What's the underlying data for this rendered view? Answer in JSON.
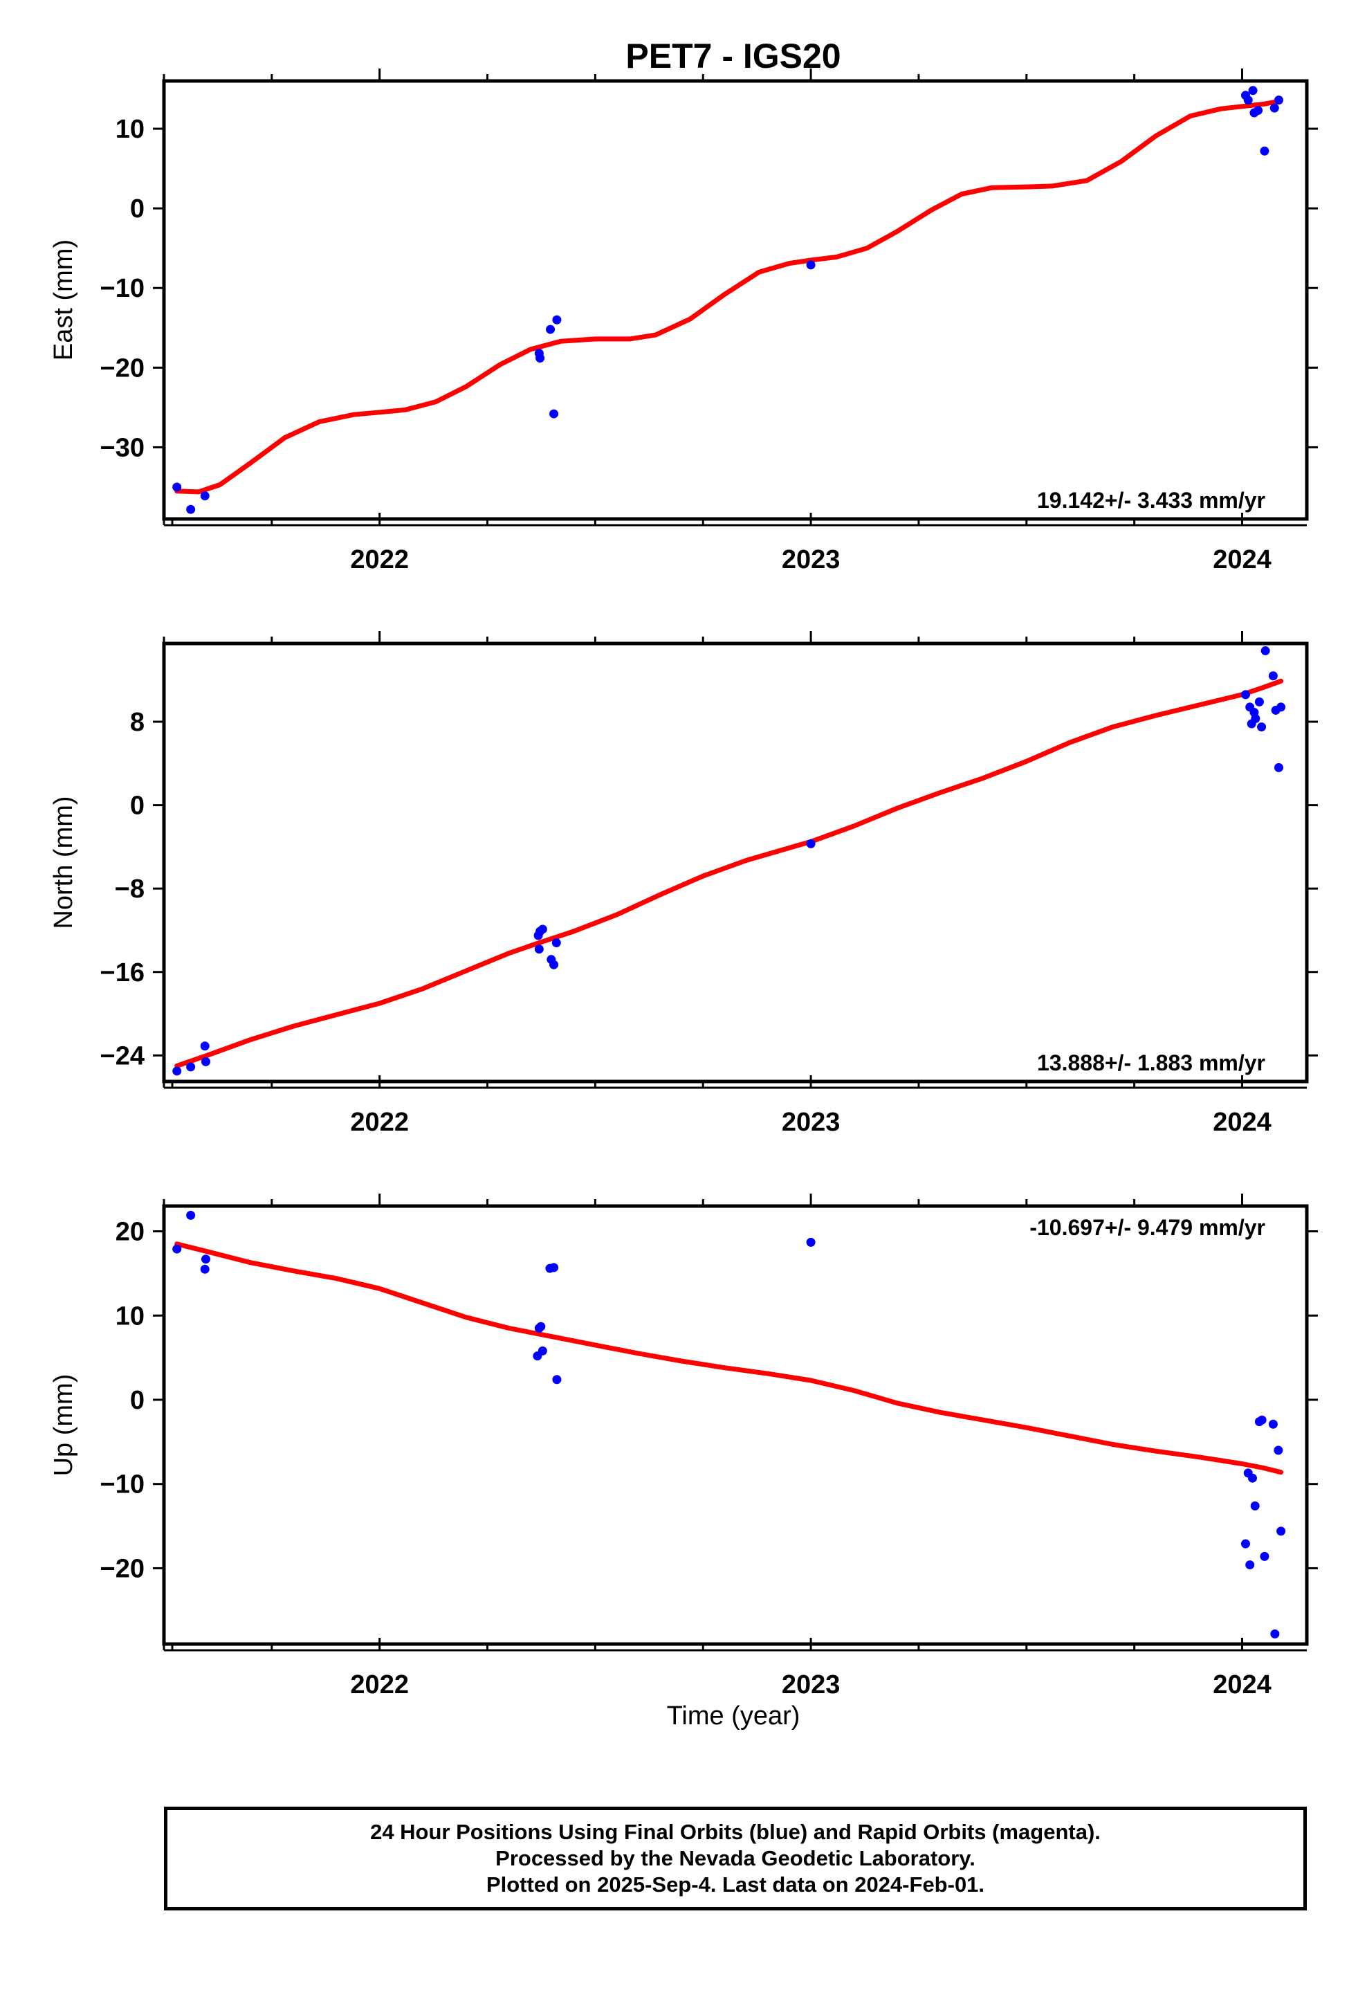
{
  "title": "PET7 - IGS20",
  "xlabel": "Time (year)",
  "colors": {
    "final_orbits": "#0000ff",
    "fit": "#ff0000"
  },
  "footer": {
    "line1": "24 Hour Positions Using Final Orbits (blue) and Rapid Orbits (magenta).",
    "line2": "Processed by the Nevada Geodetic Laboratory.",
    "line3": "Plotted on 2025-Sep-4. Last data on 2024-Feb-01."
  },
  "chart_data": [
    {
      "type": "scatter",
      "ylabel": "East (mm)",
      "rate_label": "19.142+/- 3.433 mm/yr",
      "rate_position": "bottom-right",
      "xlim": [
        2021.5,
        2024.15
      ],
      "ylim": [
        -39,
        16
      ],
      "x_ticks": [
        2022,
        2023,
        2024
      ],
      "y_ticks": [
        -30,
        -20,
        -10,
        0,
        10
      ],
      "grid": false,
      "series": [
        {
          "points": [
            [
              2021.53,
              -35.0
            ],
            [
              2021.562,
              -37.8
            ],
            [
              2021.595,
              -36.1
            ],
            [
              2022.37,
              -18.2
            ],
            [
              2022.372,
              -18.8
            ],
            [
              2022.396,
              -15.2
            ],
            [
              2022.404,
              -25.8
            ],
            [
              2022.411,
              -14.0
            ],
            [
              2023.0,
              -7.1
            ],
            [
              2024.008,
              14.2
            ],
            [
              2024.014,
              13.6
            ],
            [
              2024.025,
              14.8
            ],
            [
              2024.028,
              12.0
            ],
            [
              2024.037,
              12.3
            ],
            [
              2024.052,
              7.2
            ],
            [
              2024.075,
              12.6
            ],
            [
              2024.085,
              13.6
            ]
          ],
          "fit": [
            [
              2021.53,
              -35.5
            ],
            [
              2021.58,
              -35.6
            ],
            [
              2021.63,
              -34.7
            ],
            [
              2021.7,
              -32.0
            ],
            [
              2021.78,
              -28.8
            ],
            [
              2021.86,
              -26.8
            ],
            [
              2021.94,
              -25.9
            ],
            [
              2022.0,
              -25.6
            ],
            [
              2022.06,
              -25.3
            ],
            [
              2022.13,
              -24.3
            ],
            [
              2022.2,
              -22.4
            ],
            [
              2022.28,
              -19.6
            ],
            [
              2022.35,
              -17.7
            ],
            [
              2022.42,
              -16.7
            ],
            [
              2022.5,
              -16.4
            ],
            [
              2022.58,
              -16.4
            ],
            [
              2022.64,
              -15.9
            ],
            [
              2022.72,
              -13.9
            ],
            [
              2022.8,
              -10.8
            ],
            [
              2022.88,
              -8.0
            ],
            [
              2022.95,
              -6.9
            ],
            [
              2023.0,
              -6.5
            ],
            [
              2023.06,
              -6.1
            ],
            [
              2023.13,
              -5.0
            ],
            [
              2023.2,
              -2.9
            ],
            [
              2023.28,
              -0.2
            ],
            [
              2023.35,
              1.8
            ],
            [
              2023.42,
              2.6
            ],
            [
              2023.5,
              2.7
            ],
            [
              2023.56,
              2.8
            ],
            [
              2023.64,
              3.5
            ],
            [
              2023.72,
              5.9
            ],
            [
              2023.8,
              9.1
            ],
            [
              2023.88,
              11.6
            ],
            [
              2023.95,
              12.5
            ],
            [
              2024.0,
              12.8
            ],
            [
              2024.05,
              13.1
            ],
            [
              2024.08,
              13.4
            ]
          ]
        }
      ]
    },
    {
      "type": "scatter",
      "ylabel": "North (mm)",
      "rate_label": "13.888+/- 1.883 mm/yr",
      "rate_position": "bottom-right",
      "xlim": [
        2021.5,
        2024.15
      ],
      "ylim": [
        -26.5,
        15.5
      ],
      "x_ticks": [
        2022,
        2023,
        2024
      ],
      "y_ticks": [
        -24,
        -16,
        -8,
        0,
        8
      ],
      "grid": false,
      "series": [
        {
          "points": [
            [
              2021.53,
              -25.5
            ],
            [
              2021.562,
              -25.1
            ],
            [
              2021.595,
              -23.1
            ],
            [
              2021.597,
              -24.6
            ],
            [
              2022.368,
              -12.5
            ],
            [
              2022.372,
              -12.1
            ],
            [
              2022.378,
              -11.9
            ],
            [
              2022.37,
              -13.8
            ],
            [
              2022.398,
              -14.8
            ],
            [
              2022.404,
              -15.3
            ],
            [
              2022.41,
              -13.2
            ],
            [
              2023.0,
              -3.7
            ],
            [
              2024.008,
              10.6
            ],
            [
              2024.018,
              9.4
            ],
            [
              2024.022,
              7.8
            ],
            [
              2024.028,
              8.9
            ],
            [
              2024.031,
              8.3
            ],
            [
              2024.04,
              9.9
            ],
            [
              2024.045,
              7.5
            ],
            [
              2024.054,
              14.8
            ],
            [
              2024.072,
              12.4
            ],
            [
              2024.078,
              9.1
            ],
            [
              2024.085,
              3.6
            ],
            [
              2024.09,
              9.4
            ]
          ],
          "fit": [
            [
              2021.53,
              -25.0
            ],
            [
              2021.6,
              -24.0
            ],
            [
              2021.7,
              -22.5
            ],
            [
              2021.8,
              -21.2
            ],
            [
              2021.9,
              -20.1
            ],
            [
              2022.0,
              -19.0
            ],
            [
              2022.1,
              -17.6
            ],
            [
              2022.2,
              -15.9
            ],
            [
              2022.3,
              -14.2
            ],
            [
              2022.37,
              -13.2
            ],
            [
              2022.45,
              -12.1
            ],
            [
              2022.55,
              -10.5
            ],
            [
              2022.65,
              -8.6
            ],
            [
              2022.75,
              -6.8
            ],
            [
              2022.85,
              -5.3
            ],
            [
              2022.95,
              -4.1
            ],
            [
              2023.0,
              -3.5
            ],
            [
              2023.1,
              -2.0
            ],
            [
              2023.2,
              -0.3
            ],
            [
              2023.3,
              1.2
            ],
            [
              2023.4,
              2.6
            ],
            [
              2023.5,
              4.2
            ],
            [
              2023.6,
              6.0
            ],
            [
              2023.7,
              7.5
            ],
            [
              2023.8,
              8.6
            ],
            [
              2023.9,
              9.6
            ],
            [
              2024.0,
              10.6
            ],
            [
              2024.05,
              11.3
            ],
            [
              2024.09,
              11.9
            ]
          ]
        }
      ]
    },
    {
      "type": "scatter",
      "ylabel": "Up (mm)",
      "rate_label": "-10.697+/- 9.479 mm/yr",
      "rate_position": "top-right",
      "xlim": [
        2021.5,
        2024.15
      ],
      "ylim": [
        -29,
        23
      ],
      "x_ticks": [
        2022,
        2023,
        2024
      ],
      "y_ticks": [
        -20,
        -10,
        0,
        10,
        20
      ],
      "grid": false,
      "series": [
        {
          "points": [
            [
              2021.53,
              17.9
            ],
            [
              2021.562,
              21.9
            ],
            [
              2021.595,
              15.5
            ],
            [
              2021.597,
              16.7
            ],
            [
              2022.366,
              5.2
            ],
            [
              2022.37,
              8.5
            ],
            [
              2022.374,
              8.7
            ],
            [
              2022.378,
              5.8
            ],
            [
              2022.395,
              15.6
            ],
            [
              2022.404,
              15.7
            ],
            [
              2022.411,
              2.4
            ],
            [
              2023.0,
              18.7
            ],
            [
              2024.008,
              -17.1
            ],
            [
              2024.014,
              -8.7
            ],
            [
              2024.018,
              -19.6
            ],
            [
              2024.024,
              -9.3
            ],
            [
              2024.03,
              -12.6
            ],
            [
              2024.04,
              -2.6
            ],
            [
              2024.046,
              -2.4
            ],
            [
              2024.052,
              -18.6
            ],
            [
              2024.072,
              -2.9
            ],
            [
              2024.076,
              -27.8
            ],
            [
              2024.084,
              -6.0
            ],
            [
              2024.09,
              -15.6
            ]
          ],
          "fit": [
            [
              2021.53,
              18.5
            ],
            [
              2021.6,
              17.6
            ],
            [
              2021.7,
              16.3
            ],
            [
              2021.8,
              15.3
            ],
            [
              2021.9,
              14.4
            ],
            [
              2022.0,
              13.2
            ],
            [
              2022.1,
              11.5
            ],
            [
              2022.2,
              9.8
            ],
            [
              2022.3,
              8.5
            ],
            [
              2022.4,
              7.5
            ],
            [
              2022.5,
              6.5
            ],
            [
              2022.6,
              5.5
            ],
            [
              2022.7,
              4.6
            ],
            [
              2022.8,
              3.8
            ],
            [
              2022.9,
              3.1
            ],
            [
              2023.0,
              2.3
            ],
            [
              2023.1,
              1.1
            ],
            [
              2023.2,
              -0.4
            ],
            [
              2023.3,
              -1.5
            ],
            [
              2023.4,
              -2.4
            ],
            [
              2023.5,
              -3.3
            ],
            [
              2023.6,
              -4.3
            ],
            [
              2023.7,
              -5.3
            ],
            [
              2023.8,
              -6.1
            ],
            [
              2023.9,
              -6.8
            ],
            [
              2024.0,
              -7.6
            ],
            [
              2024.05,
              -8.1
            ],
            [
              2024.09,
              -8.6
            ]
          ]
        }
      ]
    }
  ]
}
